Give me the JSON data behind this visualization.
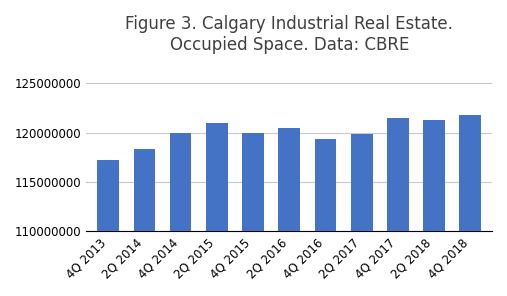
{
  "categories": [
    "4Q 2013",
    "2Q 2014",
    "4Q 2014",
    "2Q 2015",
    "4Q 2015",
    "2Q 2016",
    "4Q 2016",
    "2Q 2017",
    "4Q 2017",
    "2Q 2018",
    "4Q 2018"
  ],
  "values": [
    117200000,
    118300000,
    120000000,
    121000000,
    120000000,
    120500000,
    119400000,
    119900000,
    121500000,
    121300000,
    121800000
  ],
  "bar_color": "#4472C4",
  "title": "Figure 3. Calgary Industrial Real Estate.\nOccupied Space. Data: CBRE",
  "ylim_min": 110000000,
  "ylim_max": 127000000,
  "yticks": [
    110000000,
    115000000,
    120000000,
    125000000
  ],
  "title_fontsize": 12,
  "tick_fontsize": 8.5,
  "background_color": "#ffffff",
  "grid_color": "#c8c8c8"
}
